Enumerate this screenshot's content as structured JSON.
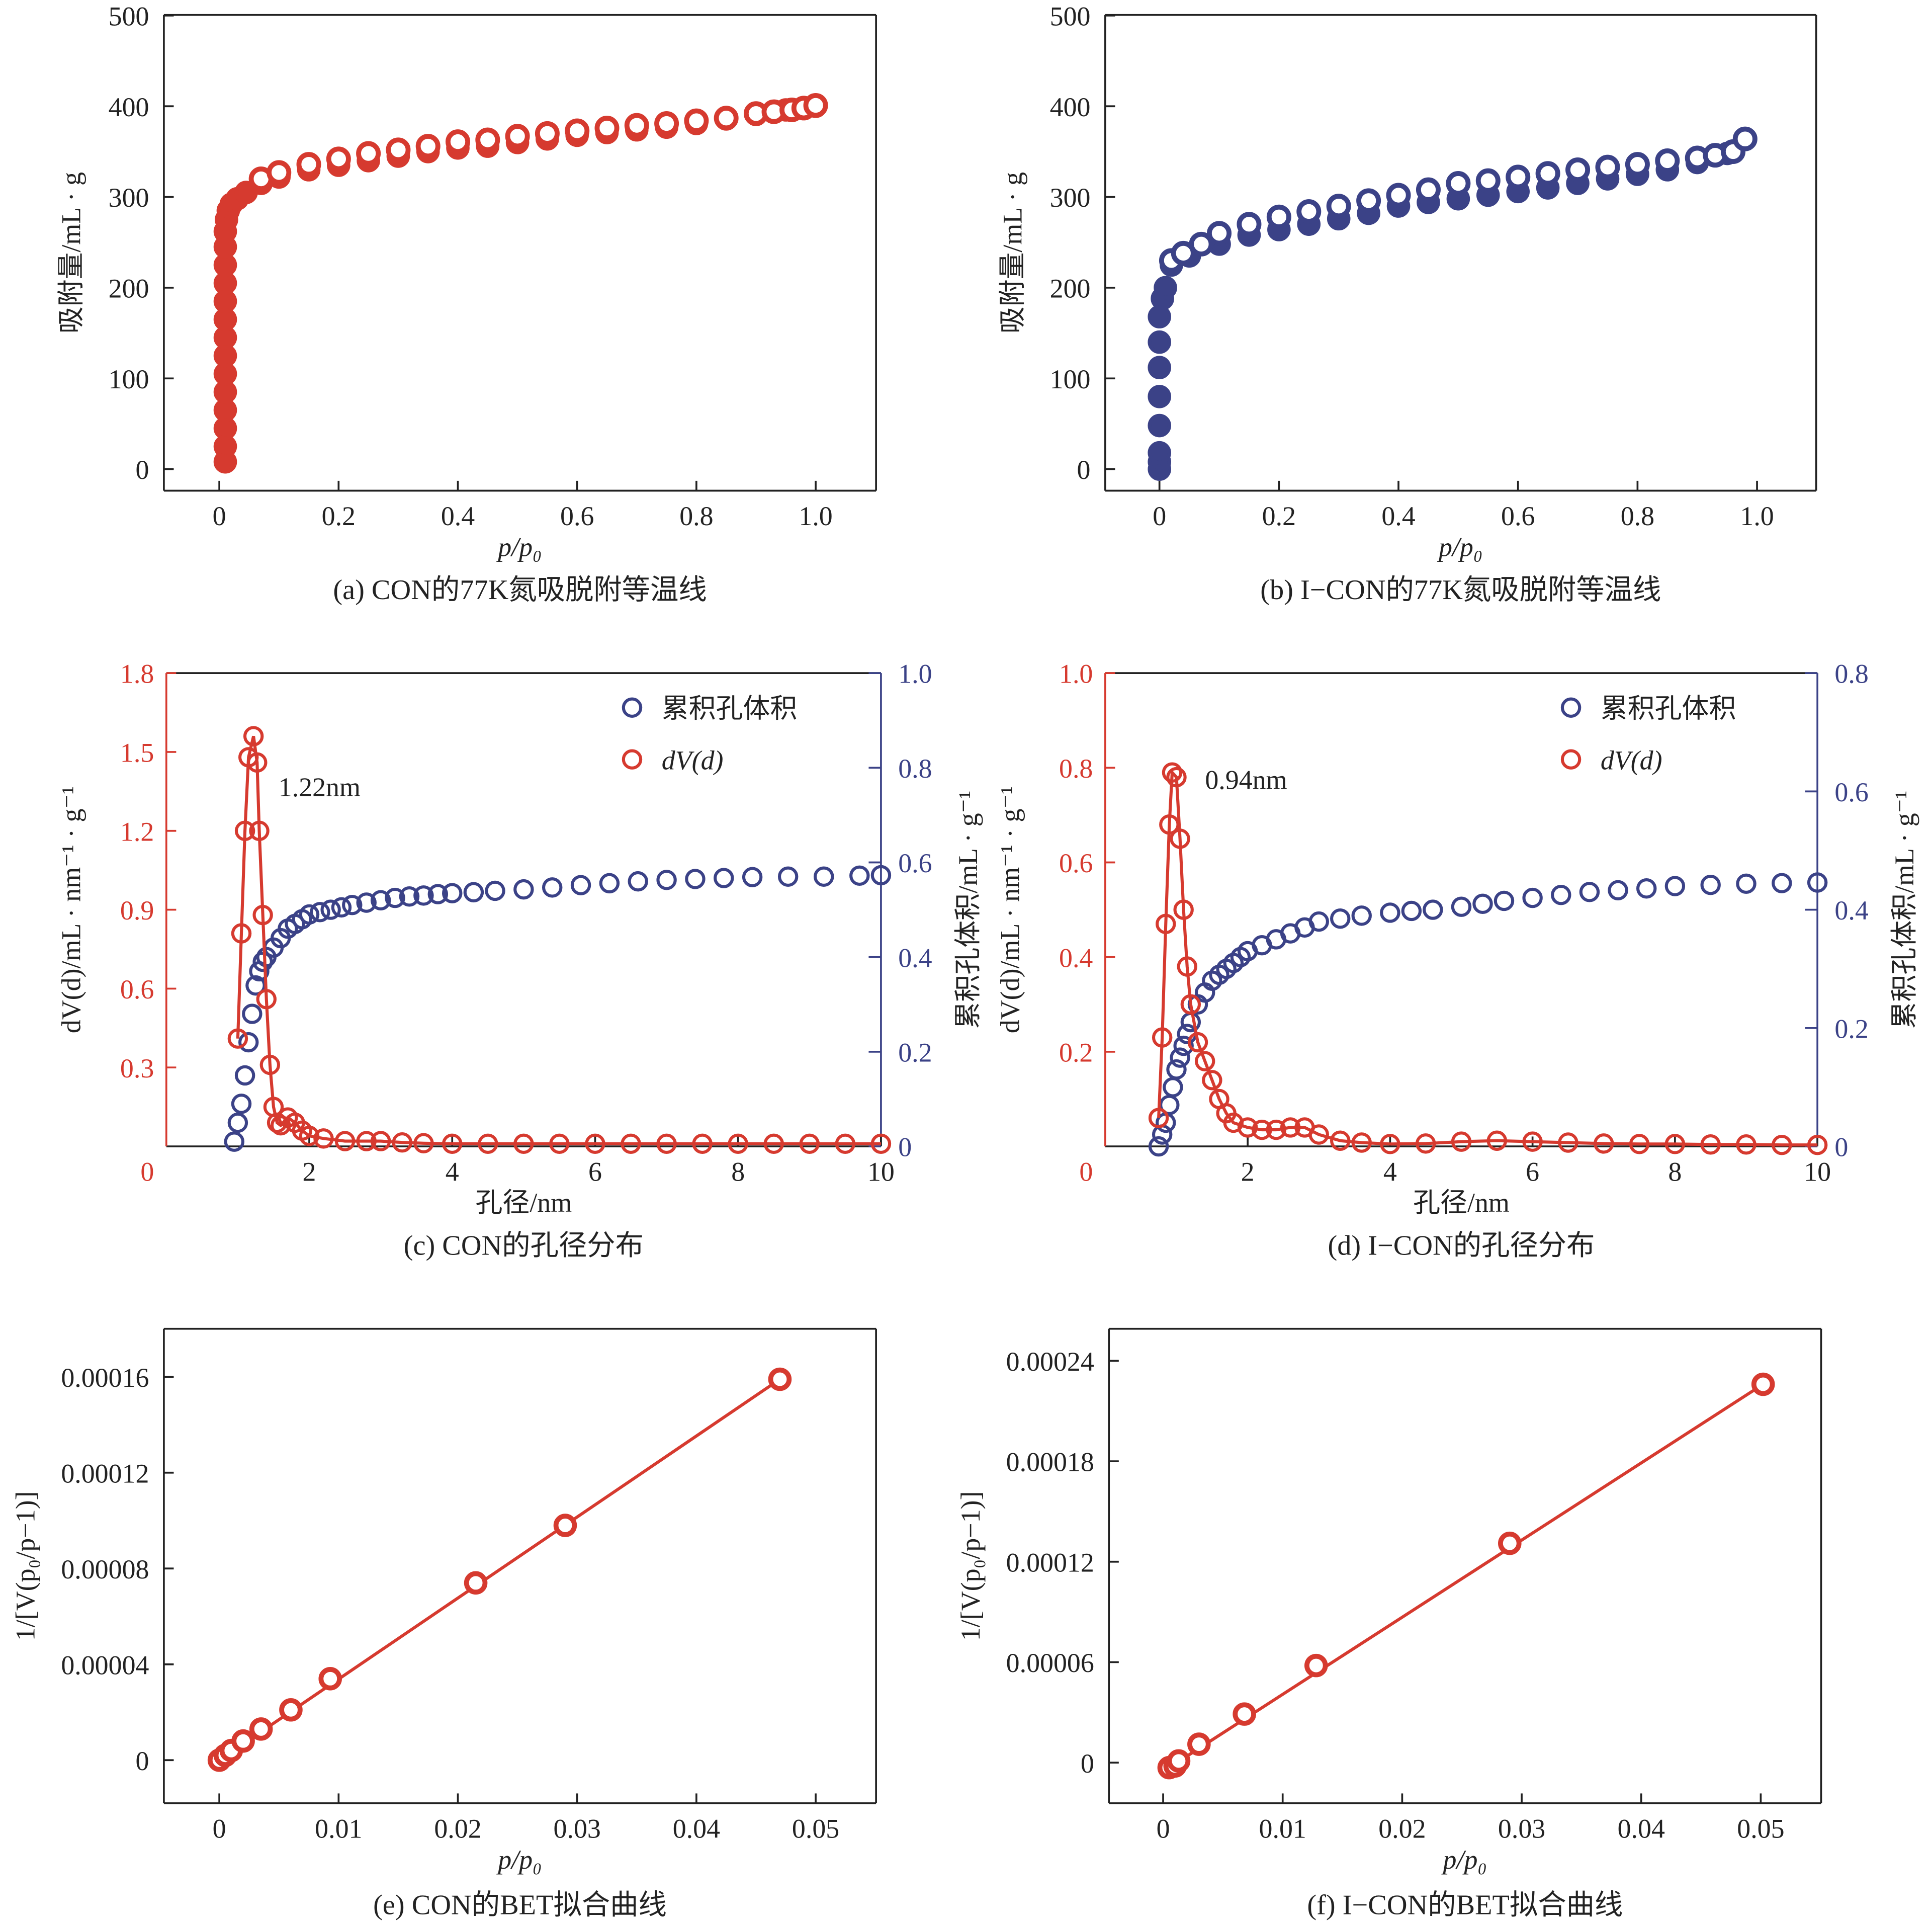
{
  "colors": {
    "red": "#d63a2f",
    "navy": "#3b4287",
    "axis": "#222222"
  },
  "chart_data": [
    {
      "id": "a",
      "type": "scatter",
      "caption": "(a) CON的77K氮吸脱附等温线",
      "xlabel": "p/p₀",
      "ylabel": "吸附量/mL · g",
      "xlim": [
        0,
        1.0
      ],
      "ylim": [
        0,
        500
      ],
      "xticks": [
        "0",
        "0.2",
        "0.4",
        "0.6",
        "0.8",
        "1.0"
      ],
      "xtick_values": [
        0,
        0.2,
        0.4,
        0.6,
        0.8,
        1.0
      ],
      "yticks": [
        "0",
        "100",
        "200",
        "300",
        "400",
        "500"
      ],
      "ytick_values": [
        0,
        100,
        200,
        300,
        400,
        500
      ],
      "series": [
        {
          "name": "adsorption",
          "color": "red",
          "filled": true,
          "x": [
            0.01,
            0.01,
            0.01,
            0.01,
            0.01,
            0.01,
            0.01,
            0.01,
            0.01,
            0.01,
            0.01,
            0.01,
            0.01,
            0.01,
            0.012,
            0.015,
            0.02,
            0.03,
            0.045,
            0.07,
            0.1,
            0.15,
            0.2,
            0.25,
            0.3,
            0.35,
            0.4,
            0.45,
            0.5,
            0.55,
            0.6,
            0.65,
            0.7,
            0.75,
            0.8,
            0.85,
            0.9,
            0.95,
            1.0
          ],
          "y": [
            8,
            25,
            45,
            65,
            85,
            105,
            125,
            145,
            165,
            185,
            205,
            225,
            245,
            262,
            275,
            285,
            292,
            298,
            305,
            315,
            322,
            330,
            335,
            340,
            345,
            350,
            354,
            356,
            360,
            364,
            368,
            371,
            374,
            377,
            381,
            386,
            391,
            396,
            400
          ]
        },
        {
          "name": "desorption",
          "color": "red",
          "filled": false,
          "x": [
            0.07,
            0.1,
            0.15,
            0.2,
            0.25,
            0.3,
            0.35,
            0.4,
            0.45,
            0.5,
            0.55,
            0.6,
            0.65,
            0.7,
            0.75,
            0.8,
            0.85,
            0.9,
            0.93,
            0.96,
            0.98,
            1.0
          ],
          "y": [
            320,
            327,
            336,
            342,
            348,
            352,
            356,
            361,
            363,
            367,
            370,
            373,
            376,
            379,
            381,
            384,
            387,
            392,
            394,
            396,
            398,
            401
          ]
        }
      ]
    },
    {
      "id": "b",
      "type": "scatter",
      "caption": "(b) I−CON的77K氮吸脱附等温线",
      "xlabel": "p/p₀",
      "ylabel": "吸附量/mL · g",
      "xlim": [
        0,
        1.0
      ],
      "ylim": [
        0,
        500
      ],
      "xticks": [
        "0",
        "0.2",
        "0.4",
        "0.6",
        "0.8",
        "1.0"
      ],
      "xtick_values": [
        0,
        0.2,
        0.4,
        0.6,
        0.8,
        1.0
      ],
      "yticks": [
        "0",
        "100",
        "200",
        "300",
        "400",
        "500"
      ],
      "ytick_values": [
        0,
        100,
        200,
        300,
        400,
        500
      ],
      "series": [
        {
          "name": "adsorption",
          "color": "navy",
          "filled": true,
          "x": [
            0,
            0,
            0,
            0,
            0,
            0,
            0,
            0,
            0.005,
            0.01,
            0.02,
            0.05,
            0.1,
            0.15,
            0.2,
            0.25,
            0.3,
            0.35,
            0.4,
            0.45,
            0.5,
            0.55,
            0.6,
            0.65,
            0.7,
            0.75,
            0.8,
            0.85,
            0.9,
            0.95
          ],
          "y": [
            0,
            8,
            18,
            48,
            80,
            112,
            140,
            168,
            188,
            200,
            225,
            235,
            248,
            258,
            264,
            270,
            276,
            282,
            290,
            294,
            298,
            302,
            306,
            310,
            315,
            320,
            325,
            330,
            338,
            348
          ]
        },
        {
          "name": "desorption",
          "color": "navy",
          "filled": false,
          "x": [
            0.02,
            0.04,
            0.07,
            0.1,
            0.15,
            0.2,
            0.25,
            0.3,
            0.35,
            0.4,
            0.45,
            0.5,
            0.55,
            0.6,
            0.65,
            0.7,
            0.75,
            0.8,
            0.85,
            0.9,
            0.93,
            0.96,
            0.98
          ],
          "y": [
            230,
            238,
            248,
            260,
            270,
            278,
            284,
            290,
            296,
            302,
            308,
            315,
            318,
            322,
            326,
            330,
            333,
            336,
            340,
            343,
            346,
            350,
            364
          ]
        }
      ]
    },
    {
      "id": "c",
      "type": "line",
      "caption": "(c) CON的孔径分布",
      "xlabel": "孔径/nm",
      "ylabel": "dV(d)/mL · nm⁻¹ · g⁻¹",
      "y2label": "累积孔体积/mL · g⁻¹",
      "xlim": [
        0,
        10
      ],
      "ylim": [
        0,
        1.8
      ],
      "y2lim": [
        0,
        1.0
      ],
      "xticks": [
        "2",
        "4",
        "6",
        "8",
        "10"
      ],
      "xtick_values": [
        2,
        4,
        6,
        8,
        10
      ],
      "yticks": [
        "0",
        "0.3",
        "0.6",
        "0.9",
        "1.2",
        "1.5",
        "1.8"
      ],
      "ytick_values": [
        0,
        0.3,
        0.6,
        0.9,
        1.2,
        1.5,
        1.8
      ],
      "y2ticks": [
        "0",
        "0.2",
        "0.4",
        "0.6",
        "0.8",
        "1.0"
      ],
      "y2tick_values": [
        0,
        0.2,
        0.4,
        0.6,
        0.8,
        1.0
      ],
      "legend": [
        "累积孔体积",
        "dV(d)"
      ],
      "legend_position": "top-right",
      "annotation": "1.22nm",
      "series": [
        {
          "name": "累积孔体积",
          "color": "navy",
          "axis": "y2",
          "line": false,
          "x": [
            0.95,
            1.0,
            1.05,
            1.1,
            1.15,
            1.2,
            1.25,
            1.3,
            1.35,
            1.4,
            1.5,
            1.6,
            1.7,
            1.8,
            1.9,
            2.0,
            2.15,
            2.3,
            2.45,
            2.6,
            2.8,
            3.0,
            3.2,
            3.4,
            3.6,
            3.8,
            4.0,
            4.3,
            4.6,
            5.0,
            5.4,
            5.8,
            6.2,
            6.6,
            7.0,
            7.4,
            7.8,
            8.2,
            8.7,
            9.2,
            9.7,
            10
          ],
          "y": [
            0.01,
            0.05,
            0.09,
            0.15,
            0.22,
            0.28,
            0.34,
            0.37,
            0.39,
            0.4,
            0.42,
            0.44,
            0.46,
            0.47,
            0.48,
            0.49,
            0.495,
            0.5,
            0.505,
            0.51,
            0.515,
            0.52,
            0.525,
            0.528,
            0.53,
            0.533,
            0.535,
            0.537,
            0.54,
            0.543,
            0.547,
            0.552,
            0.556,
            0.56,
            0.563,
            0.565,
            0.567,
            0.569,
            0.57,
            0.57,
            0.572,
            0.573
          ]
        },
        {
          "name": "dV(d)",
          "color": "red",
          "axis": "y",
          "line": true,
          "x": [
            1.0,
            1.05,
            1.1,
            1.15,
            1.22,
            1.27,
            1.3,
            1.35,
            1.4,
            1.45,
            1.5,
            1.55,
            1.6,
            1.7,
            1.8,
            1.9,
            2.0,
            2.2,
            2.5,
            2.8,
            3.0,
            3.3,
            3.6,
            4.0,
            4.5,
            5.0,
            5.5,
            6.0,
            6.5,
            7.0,
            7.5,
            8.0,
            8.5,
            9.0,
            9.5,
            10
          ],
          "y": [
            0.41,
            0.81,
            1.2,
            1.48,
            1.56,
            1.46,
            1.2,
            0.88,
            0.56,
            0.31,
            0.15,
            0.09,
            0.08,
            0.11,
            0.09,
            0.06,
            0.04,
            0.03,
            0.02,
            0.02,
            0.02,
            0.015,
            0.012,
            0.01,
            0.01,
            0.01,
            0.01,
            0.01,
            0.01,
            0.01,
            0.01,
            0.01,
            0.01,
            0.01,
            0.01,
            0.01
          ]
        }
      ]
    },
    {
      "id": "d",
      "type": "line",
      "caption": "(d) I−CON的孔径分布",
      "xlabel": "孔径/nm",
      "ylabel": "dV(d)/mL · nm⁻¹ · g⁻¹",
      "y2label": "累积孔体积/mL · g⁻¹",
      "xlim": [
        0,
        10
      ],
      "ylim": [
        0,
        1.0
      ],
      "y2lim": [
        0,
        0.8
      ],
      "xticks": [
        "2",
        "4",
        "6",
        "8",
        "10"
      ],
      "xtick_values": [
        2,
        4,
        6,
        8,
        10
      ],
      "yticks": [
        "0",
        "0.2",
        "0.4",
        "0.6",
        "0.8",
        "1.0"
      ],
      "ytick_values": [
        0,
        0.2,
        0.4,
        0.6,
        0.8,
        1.0
      ],
      "y2ticks": [
        "0",
        "0.2",
        "0.4",
        "0.6",
        "0.8"
      ],
      "y2tick_values": [
        0,
        0.2,
        0.4,
        0.6,
        0.8
      ],
      "legend": [
        "累积孔体积",
        "dV(d)"
      ],
      "legend_position": "top-right",
      "annotation": "0.94nm",
      "series": [
        {
          "name": "累积孔体积",
          "color": "navy",
          "axis": "y2",
          "line": false,
          "x": [
            0.75,
            0.8,
            0.85,
            0.9,
            0.95,
            1.0,
            1.05,
            1.1,
            1.15,
            1.2,
            1.3,
            1.4,
            1.5,
            1.6,
            1.7,
            1.8,
            1.9,
            2.0,
            2.2,
            2.4,
            2.6,
            2.8,
            3.0,
            3.3,
            3.6,
            4.0,
            4.3,
            4.6,
            5.0,
            5.3,
            5.6,
            6.0,
            6.4,
            6.8,
            7.2,
            7.6,
            8.0,
            8.5,
            9.0,
            9.5,
            10
          ],
          "y": [
            0.0,
            0.02,
            0.04,
            0.07,
            0.1,
            0.13,
            0.15,
            0.17,
            0.19,
            0.21,
            0.24,
            0.26,
            0.28,
            0.29,
            0.3,
            0.31,
            0.32,
            0.33,
            0.34,
            0.35,
            0.36,
            0.37,
            0.38,
            0.385,
            0.39,
            0.395,
            0.398,
            0.4,
            0.405,
            0.41,
            0.415,
            0.42,
            0.425,
            0.43,
            0.433,
            0.436,
            0.44,
            0.442,
            0.444,
            0.445,
            0.446
          ]
        },
        {
          "name": "dV(d)",
          "color": "red",
          "axis": "y",
          "line": true,
          "x": [
            0.75,
            0.8,
            0.85,
            0.9,
            0.94,
            1.0,
            1.05,
            1.1,
            1.15,
            1.2,
            1.3,
            1.4,
            1.5,
            1.6,
            1.7,
            1.8,
            2.0,
            2.2,
            2.4,
            2.6,
            2.8,
            3.0,
            3.3,
            3.6,
            4.0,
            4.5,
            5.0,
            5.5,
            6.0,
            6.5,
            7.0,
            7.5,
            8.0,
            8.5,
            9.0,
            9.5,
            10
          ],
          "y": [
            0.06,
            0.23,
            0.47,
            0.68,
            0.79,
            0.78,
            0.65,
            0.5,
            0.38,
            0.3,
            0.22,
            0.18,
            0.14,
            0.1,
            0.07,
            0.05,
            0.04,
            0.035,
            0.035,
            0.04,
            0.04,
            0.025,
            0.012,
            0.008,
            0.005,
            0.006,
            0.01,
            0.012,
            0.01,
            0.008,
            0.006,
            0.005,
            0.005,
            0.004,
            0.004,
            0.003,
            0.003
          ]
        }
      ]
    },
    {
      "id": "e",
      "type": "scatter",
      "caption": "(e) CON的BET拟合曲线",
      "xlabel": "p/p₀",
      "ylabel": "1/[V(p₀/p−1)]",
      "xlim": [
        0,
        0.05
      ],
      "ylim": [
        0,
        0.00016
      ],
      "xticks": [
        "0",
        "0.01",
        "0.02",
        "0.03",
        "0.04",
        "0.05"
      ],
      "xtick_values": [
        0,
        0.01,
        0.02,
        0.03,
        0.04,
        0.05
      ],
      "yticks": [
        "0",
        "0.00004",
        "0.00008",
        "0.00012",
        "0.00016"
      ],
      "ytick_values": [
        0,
        4e-05,
        8e-05,
        0.00012,
        0.00016
      ],
      "fit": {
        "x": [
          0,
          0.047
        ],
        "y": [
          0,
          0.000159
        ]
      },
      "series": [
        {
          "name": "BET",
          "color": "red",
          "filled": false,
          "x": [
            0,
            0.0005,
            0.001,
            0.002,
            0.0035,
            0.006,
            0.0093,
            0.0215,
            0.029,
            0.047
          ],
          "y": [
            0,
            2e-06,
            4e-06,
            8e-06,
            1.3e-05,
            2.1e-05,
            3.4e-05,
            7.4e-05,
            9.8e-05,
            0.000159
          ]
        }
      ]
    },
    {
      "id": "f",
      "type": "scatter",
      "caption": "(f) I−CON的BET拟合曲线",
      "xlabel": "p/p₀",
      "ylabel": "1/[V(p₀/p−1)]",
      "xlim": [
        0,
        0.05
      ],
      "ylim": [
        0,
        0.00024
      ],
      "xticks": [
        "0",
        "0.01",
        "0.02",
        "0.03",
        "0.04",
        "0.05"
      ],
      "xtick_values": [
        0,
        0.01,
        0.02,
        0.03,
        0.04,
        0.05
      ],
      "yticks": [
        "0",
        "0.00006",
        "0.00012",
        "0.00018",
        "0.00024"
      ],
      "ytick_values": [
        0,
        6e-05,
        0.00012,
        0.00018,
        0.00024
      ],
      "fit": {
        "x": [
          0.0005,
          0.0502
        ],
        "y": [
          -3e-06,
          0.000226
        ]
      },
      "series": [
        {
          "name": "BET",
          "color": "red",
          "filled": false,
          "x": [
            0.0005,
            0.001,
            0.0013,
            0.003,
            0.0068,
            0.0128,
            0.029,
            0.0502
          ],
          "y": [
            -3e-06,
            -2e-06,
            1e-06,
            1.1e-05,
            2.9e-05,
            5.8e-05,
            0.000131,
            0.000226
          ]
        }
      ]
    }
  ]
}
